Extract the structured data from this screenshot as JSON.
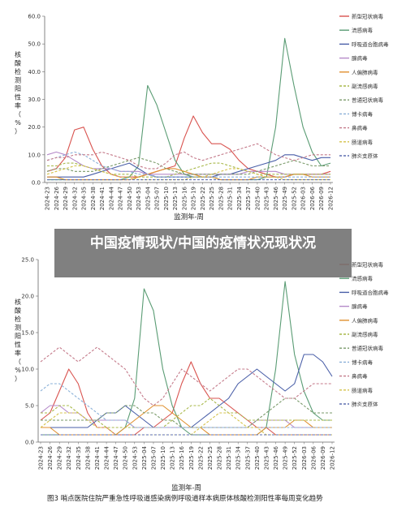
{
  "banner": {
    "title": "中国疫情现状/中国的疫情状况现状况"
  },
  "colors": {
    "新型冠状病毒": "#d9534f",
    "流感病毒": "#5a9c74",
    "呼吸道合胞病毒": "#4a5fa8",
    "腺病毒": "#b58ac9",
    "人偏肺病毒": "#e0902f",
    "副流感病毒": "#a8b84a",
    "普通冠状病毒": "#7a9a6a",
    "博卡病毒": "#8ab0d8",
    "鼻病毒": "#c47a8a",
    "肠道病毒": "#d4c24a",
    "肺炎支原体": "#5f6fb0"
  },
  "chart_data": [
    {
      "type": "line",
      "title": "",
      "xlabel": "监测年-周",
      "ylabel": "核酸检测阳性率（%）",
      "ylim": [
        0,
        60
      ],
      "yticks": [
        "0.0",
        "10.0",
        "20.0",
        "30.0",
        "40.0",
        "50.0",
        "60.0"
      ],
      "grid": false,
      "legend_position": "right",
      "x_tick_labels": [
        "2024-23",
        "2024-26",
        "2024-29",
        "2024-32",
        "2024-35",
        "2024-38",
        "2024-41",
        "2024-44",
        "2024-47",
        "2024-50",
        "2024-53",
        "2025-04",
        "2025-07",
        "2025-10",
        "2025-13",
        "2025-16",
        "2025-19",
        "2025-22",
        "2025-25",
        "2025-28",
        "2025-31",
        "2025-34",
        "2025-37",
        "2025-40",
        "2025-43",
        "2025-46",
        "2025-49",
        "2025-52",
        "2026-03",
        "2026-06",
        "2026-09",
        "2026-12"
      ],
      "series": [
        {
          "name": "新型冠状病毒",
          "style": "solid",
          "values": [
            4,
            5,
            9,
            19,
            20,
            12,
            6,
            3,
            2,
            2,
            2,
            3,
            4,
            5,
            6,
            16,
            24,
            18,
            14,
            14,
            12,
            8,
            5,
            4,
            3,
            2,
            2,
            3,
            3,
            3,
            3,
            4
          ]
        },
        {
          "name": "流感病毒",
          "style": "solid",
          "values": [
            1,
            1,
            1,
            1,
            1,
            1,
            1,
            1,
            1,
            2,
            6,
            35,
            28,
            18,
            8,
            3,
            2,
            2,
            2,
            1,
            1,
            1,
            1,
            1,
            2,
            20,
            52,
            35,
            20,
            11,
            6,
            7
          ]
        },
        {
          "name": "呼吸道合胞病毒",
          "style": "solid",
          "values": [
            2,
            2,
            2,
            2,
            2,
            3,
            4,
            5,
            6,
            7,
            5,
            3,
            2,
            2,
            2,
            2,
            2,
            2,
            2,
            3,
            3,
            4,
            5,
            6,
            7,
            8,
            10,
            10,
            9,
            8,
            9,
            9
          ]
        },
        {
          "name": "腺病毒",
          "style": "solid",
          "values": [
            10,
            11,
            10,
            8,
            6,
            5,
            5,
            5,
            4,
            4,
            4,
            3,
            3,
            3,
            3,
            3,
            3,
            3,
            3,
            3,
            3,
            3,
            4,
            4,
            4,
            4,
            3,
            3,
            3,
            3,
            3,
            3
          ]
        },
        {
          "name": "人偏肺病毒",
          "style": "solid",
          "values": [
            2,
            2,
            1,
            1,
            1,
            1,
            1,
            1,
            1,
            1,
            2,
            3,
            4,
            5,
            5,
            4,
            3,
            2,
            2,
            1,
            1,
            1,
            1,
            2,
            2,
            2,
            2,
            3,
            3,
            2,
            2,
            2
          ]
        },
        {
          "name": "副流感病毒",
          "style": "dashed",
          "values": [
            6,
            6,
            7,
            7,
            6,
            5,
            4,
            3,
            3,
            3,
            2,
            2,
            2,
            2,
            3,
            4,
            5,
            6,
            7,
            7,
            6,
            5,
            4,
            3,
            3,
            3,
            3,
            3,
            3,
            3,
            3,
            3
          ]
        },
        {
          "name": "普通冠状病毒",
          "style": "dashed",
          "values": [
            4,
            5,
            5,
            4,
            4,
            4,
            5,
            6,
            7,
            8,
            9,
            8,
            7,
            5,
            4,
            3,
            3,
            3,
            3,
            3,
            3,
            3,
            3,
            4,
            5,
            6,
            7,
            8,
            7,
            6,
            6,
            6
          ]
        },
        {
          "name": "博卡病毒",
          "style": "dashed",
          "values": [
            8,
            9,
            10,
            11,
            10,
            8,
            6,
            5,
            4,
            4,
            3,
            3,
            2,
            2,
            2,
            2,
            2,
            2,
            2,
            2,
            2,
            2,
            2,
            2,
            2,
            2,
            2,
            2,
            2,
            2,
            2,
            2
          ]
        },
        {
          "name": "鼻病毒",
          "style": "dashed",
          "values": [
            8,
            9,
            9,
            10,
            10,
            10,
            11,
            10,
            9,
            8,
            6,
            5,
            5,
            7,
            10,
            11,
            9,
            8,
            9,
            10,
            11,
            12,
            13,
            14,
            12,
            10,
            9,
            8,
            9,
            10,
            10,
            10
          ]
        },
        {
          "name": "肠道病毒",
          "style": "dashed",
          "values": [
            3,
            4,
            5,
            6,
            6,
            5,
            4,
            3,
            2,
            2,
            1,
            1,
            1,
            1,
            1,
            1,
            2,
            2,
            3,
            4,
            5,
            5,
            4,
            3,
            2,
            2,
            1,
            1,
            1,
            1,
            1,
            1
          ]
        },
        {
          "name": "肺炎支原体",
          "style": "dashed",
          "values": [
            1,
            1,
            1,
            1,
            1,
            1,
            1,
            1,
            1,
            1,
            1,
            1,
            1,
            1,
            1,
            1,
            1,
            1,
            1,
            1,
            1,
            1,
            1,
            1,
            1,
            1,
            1,
            1,
            1,
            1,
            1,
            1
          ]
        }
      ]
    },
    {
      "type": "line",
      "title": "图3  哨点医院住院严重急性呼吸道感染病例呼吸道样本病原体核酸检测阳性率每周变化趋势",
      "xlabel": "监测年-周",
      "ylabel": "核酸检测阳性率（%）",
      "ylim": [
        0,
        25
      ],
      "yticks": [
        "0.0",
        "5.0",
        "10.0",
        "15.0",
        "20.0",
        "25.0"
      ],
      "grid": false,
      "legend_position": "right",
      "x_tick_labels": [
        "2024-23",
        "2024-26",
        "2024-29",
        "2024-32",
        "2024-35",
        "2024-38",
        "2024-41",
        "2024-44",
        "2024-47",
        "2024-50",
        "2024-53",
        "2025-04",
        "2025-07",
        "2025-10",
        "2025-13",
        "2025-16",
        "2025-19",
        "2025-22",
        "2025-25",
        "2025-28",
        "2025-31",
        "2025-34",
        "2025-37",
        "2025-40",
        "2025-43",
        "2025-46",
        "2025-49",
        "2025-52",
        "2026-03",
        "2026-06",
        "2026-09",
        "2026-12"
      ],
      "series": [
        {
          "name": "新型冠状病毒",
          "style": "solid",
          "values": [
            3,
            4,
            7,
            10,
            8,
            4,
            2,
            2,
            1,
            1,
            1,
            2,
            2,
            3,
            4,
            8,
            11,
            8,
            6,
            6,
            5,
            4,
            3,
            2,
            2,
            1,
            1,
            1,
            1,
            1,
            1,
            1
          ]
        },
        {
          "name": "流感病毒",
          "style": "solid",
          "values": [
            1,
            1,
            1,
            1,
            1,
            1,
            1,
            1,
            1,
            2,
            6,
            21,
            18,
            10,
            5,
            2,
            1,
            1,
            1,
            1,
            1,
            1,
            1,
            1,
            2,
            10,
            22,
            12,
            7,
            4,
            3,
            3
          ]
        },
        {
          "name": "呼吸道合胞病毒",
          "style": "solid",
          "values": [
            2,
            2,
            2,
            2,
            2,
            2,
            3,
            4,
            4,
            5,
            4,
            3,
            2,
            2,
            2,
            2,
            2,
            3,
            4,
            5,
            6,
            8,
            9,
            10,
            9,
            8,
            7,
            8,
            12,
            12,
            11,
            9
          ]
        },
        {
          "name": "腺病毒",
          "style": "solid",
          "values": [
            4,
            5,
            5,
            4,
            4,
            3,
            3,
            3,
            3,
            3,
            2,
            2,
            2,
            2,
            2,
            2,
            2,
            2,
            2,
            2,
            2,
            2,
            2,
            3,
            3,
            3,
            3,
            2,
            2,
            2,
            2,
            2
          ]
        },
        {
          "name": "人偏肺病毒",
          "style": "solid",
          "values": [
            2,
            2,
            1,
            1,
            1,
            1,
            1,
            1,
            1,
            2,
            3,
            4,
            5,
            5,
            4,
            3,
            2,
            2,
            1,
            1,
            1,
            1,
            1,
            1,
            2,
            2,
            2,
            3,
            3,
            2,
            2,
            2
          ]
        },
        {
          "name": "副流感病毒",
          "style": "dashed",
          "values": [
            4,
            4,
            5,
            5,
            4,
            3,
            3,
            2,
            2,
            2,
            2,
            2,
            2,
            2,
            3,
            4,
            5,
            5,
            6,
            5,
            4,
            4,
            3,
            3,
            3,
            3,
            3,
            3,
            3,
            3,
            3,
            3
          ]
        },
        {
          "name": "普通冠状病毒",
          "style": "dashed",
          "values": [
            3,
            3,
            3,
            3,
            3,
            3,
            3,
            4,
            4,
            5,
            5,
            4,
            4,
            3,
            3,
            2,
            2,
            2,
            2,
            2,
            2,
            2,
            2,
            3,
            4,
            5,
            6,
            6,
            5,
            4,
            4,
            4
          ]
        },
        {
          "name": "博卡病毒",
          "style": "dashed",
          "values": [
            7,
            8,
            8,
            7,
            6,
            5,
            4,
            3,
            3,
            3,
            2,
            2,
            2,
            2,
            2,
            2,
            2,
            2,
            2,
            2,
            2,
            2,
            2,
            2,
            2,
            2,
            2,
            2,
            2,
            2,
            2,
            2
          ]
        },
        {
          "name": "鼻病毒",
          "style": "dashed",
          "values": [
            11,
            12,
            13,
            12,
            11,
            12,
            13,
            12,
            11,
            10,
            8,
            6,
            5,
            6,
            8,
            10,
            9,
            8,
            7,
            8,
            9,
            10,
            10,
            9,
            8,
            7,
            6,
            6,
            7,
            8,
            8,
            8
          ]
        },
        {
          "name": "肠道病毒",
          "style": "dashed",
          "values": [
            2,
            3,
            4,
            4,
            4,
            3,
            2,
            2,
            1,
            1,
            1,
            1,
            1,
            1,
            1,
            1,
            1,
            2,
            3,
            4,
            4,
            3,
            2,
            2,
            1,
            1,
            1,
            1,
            1,
            1,
            1,
            1
          ]
        },
        {
          "name": "肺炎支原体",
          "style": "dashed",
          "values": [
            1,
            1,
            1,
            1,
            1,
            1,
            1,
            1,
            1,
            1,
            1,
            1,
            1,
            1,
            1,
            1,
            1,
            1,
            1,
            1,
            1,
            1,
            1,
            1,
            1,
            1,
            1,
            1,
            1,
            1,
            1,
            1
          ]
        }
      ]
    }
  ]
}
